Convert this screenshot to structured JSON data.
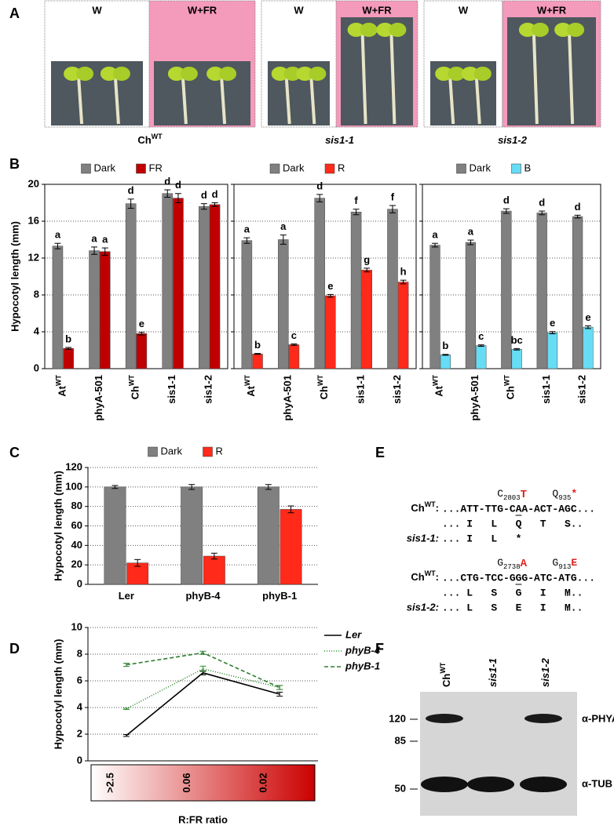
{
  "panel_labels": [
    "A",
    "B",
    "C",
    "D",
    "E",
    "F"
  ],
  "panel_a": {
    "groups": [
      {
        "conditions": [
          "W",
          "W+FR"
        ],
        "caption": "Ch",
        "caption_sup": "WT",
        "caption_color": "#6a5acd"
      },
      {
        "conditions": [
          "W",
          "W+FR"
        ],
        "caption": "sis1-1",
        "caption_color": "#000000"
      },
      {
        "conditions": [
          "W",
          "W+FR"
        ],
        "caption": "sis1-2",
        "caption_color": "#000000"
      }
    ]
  },
  "chart_data": [
    {
      "type": "bar",
      "y_label": "Hypocotyl length (mm)",
      "categories": [
        "At",
        "phyA-501",
        "Ch",
        "sis1-1",
        "sis1-2"
      ],
      "category_sups": [
        "WT",
        null,
        "WT",
        null,
        null
      ],
      "category_colors": [
        "#000000",
        "#000000",
        "#6a5acd",
        "#000000",
        "#000000"
      ],
      "series": [
        {
          "name": "Dark",
          "color": "#808080",
          "values": [
            13.3,
            12.8,
            17.9,
            19.0,
            17.6
          ],
          "errors": [
            0.3,
            0.4,
            0.5,
            0.4,
            0.3
          ],
          "letters": [
            "a",
            "a",
            "d",
            "d",
            "d"
          ]
        },
        {
          "name": "FR",
          "color": "#c00000",
          "values": [
            2.2,
            12.7,
            3.8,
            18.5,
            17.8
          ],
          "errors": [
            0.1,
            0.4,
            0.15,
            0.5,
            0.2
          ],
          "letters": [
            "b",
            "a",
            "e",
            "d",
            "d"
          ]
        }
      ],
      "ylim": [
        0,
        20
      ],
      "yticks": [
        0,
        4,
        8,
        12,
        16,
        20
      ],
      "grid": true,
      "frame": true,
      "rotate_labels": true
    },
    {
      "type": "bar",
      "categories": [
        "At",
        "phyA-501",
        "Ch",
        "sis1-1",
        "sis1-2"
      ],
      "category_sups": [
        "WT",
        null,
        "WT",
        null,
        null
      ],
      "category_colors": [
        "#000000",
        "#000000",
        "#6a5acd",
        "#000000",
        "#000000"
      ],
      "series": [
        {
          "name": "Dark",
          "color": "#808080",
          "values": [
            13.9,
            14.0,
            18.5,
            17.0,
            17.3
          ],
          "errors": [
            0.3,
            0.5,
            0.4,
            0.3,
            0.4
          ],
          "letters": [
            "a",
            "a",
            "d",
            "f",
            "f"
          ]
        },
        {
          "name": "R",
          "color": "#ff2a1a",
          "values": [
            1.6,
            2.6,
            7.9,
            10.7,
            9.4
          ],
          "errors": [
            0.05,
            0.08,
            0.15,
            0.2,
            0.2
          ],
          "letters": [
            "b",
            "c",
            "e",
            "g",
            "h"
          ]
        }
      ],
      "ylim": [
        0,
        20
      ],
      "yticks": [
        0,
        4,
        8,
        12,
        16,
        20
      ],
      "grid": true,
      "frame": true,
      "rotate_labels": true,
      "tick_labels": false
    },
    {
      "type": "bar",
      "categories": [
        "At",
        "phyA-501",
        "Ch",
        "sis1-1",
        "sis1-2"
      ],
      "category_sups": [
        "WT",
        null,
        "WT",
        null,
        null
      ],
      "category_colors": [
        "#000000",
        "#000000",
        "#6a5acd",
        "#000000",
        "#000000"
      ],
      "series": [
        {
          "name": "Dark",
          "color": "#808080",
          "values": [
            13.4,
            13.7,
            17.1,
            16.9,
            16.5
          ],
          "errors": [
            0.2,
            0.25,
            0.25,
            0.2,
            0.15
          ],
          "letters": [
            "a",
            "a",
            "d",
            "d",
            "d"
          ]
        },
        {
          "name": "B",
          "color": "#66ddf5",
          "values": [
            1.5,
            2.5,
            2.1,
            3.9,
            4.5
          ],
          "errors": [
            0.05,
            0.08,
            0.08,
            0.12,
            0.15
          ],
          "letters": [
            "b",
            "c",
            "bc",
            "e",
            "e"
          ]
        }
      ],
      "ylim": [
        0,
        20
      ],
      "yticks": [
        0,
        4,
        8,
        12,
        16,
        20
      ],
      "grid": true,
      "frame": true,
      "rotate_labels": true,
      "tick_labels": false
    },
    {
      "type": "bar",
      "y_label": "Hypocotyl length (mm)",
      "categories": [
        "Ler",
        "phyB-4",
        "phyB-1"
      ],
      "series": [
        {
          "name": "Dark",
          "color": "#808080",
          "values": [
            100,
            100,
            100
          ],
          "errors": [
            1.5,
            2.5,
            2.5
          ]
        },
        {
          "name": "R",
          "color": "#ff2a1a",
          "values": [
            22,
            29,
            77
          ],
          "errors": [
            3.5,
            3,
            3.5
          ]
        }
      ],
      "ylim": [
        0,
        120
      ],
      "yticks": [
        0,
        20,
        40,
        60,
        80,
        100,
        120
      ],
      "grid": true,
      "frame": false,
      "rotate_labels": false
    },
    {
      "type": "line",
      "y_label": "Hypocotyl length (mm)",
      "x_label": "R:FR ratio",
      "categories": [
        ">2.5",
        "0.06",
        "0.02"
      ],
      "gradient": [
        "#ffffff",
        "#cc0000"
      ],
      "series": [
        {
          "name": "Ler",
          "color": "#000000",
          "dash": "none",
          "values": [
            1.9,
            6.6,
            5.0
          ],
          "errors": [
            0.07,
            0.15,
            0.15
          ]
        },
        {
          "name": "phyB-4",
          "color": "#2e8b2e",
          "dash": "1,2",
          "values": [
            3.9,
            6.9,
            5.5
          ],
          "errors": [
            0.05,
            0.2,
            0.15
          ]
        },
        {
          "name": "phyB-1",
          "color": "#2e7d2e",
          "dash": "5,3",
          "values": [
            7.2,
            8.1,
            5.5
          ],
          "errors": [
            0.12,
            0.12,
            0.15
          ]
        }
      ],
      "ylim": [
        0,
        10
      ],
      "yticks": [
        0,
        2,
        4,
        6,
        8,
        10
      ],
      "grid": true
    }
  ],
  "panel_e": {
    "blocks": [
      {
        "mut_from": "C",
        "mut_pos": "2803",
        "mut_to": "T",
        "aa_from": "Q",
        "aa_pos": "935",
        "aa_to": "*",
        "wt_label": "Ch",
        "wt_sup": "WT",
        "colon": ":",
        "wt_seq": "...ATT-TTG-CAA-ACT-AGC...",
        "wt_aa": [
          "...",
          "I",
          "L",
          "Q",
          "T",
          "S",
          "..."
        ],
        "mut_label": "sis1-1:",
        "mut_aa": [
          "...",
          "I",
          "L",
          "*"
        ],
        "highlight": 3,
        "highlight_color": "#e02020"
      },
      {
        "mut_from": "G",
        "mut_pos": "2738",
        "mut_to": "A",
        "aa_from": "G",
        "aa_pos": "913",
        "aa_to": "E",
        "wt_label": "Ch",
        "wt_sup": "WT",
        "colon": ":",
        "wt_seq": "...CTG-TCC-GGG-ATC-ATG...",
        "wt_aa": [
          "...",
          "L",
          "S",
          "G",
          "I",
          "M",
          "..."
        ],
        "mut_label": "sis1-2:",
        "mut_aa": [
          "...",
          "L",
          "S",
          "E",
          "I",
          "M",
          "..."
        ],
        "highlight": 3,
        "highlight_color": "#e02020"
      }
    ]
  },
  "panel_f": {
    "lanes": [
      {
        "label": "Ch",
        "sup": "WT",
        "color": "#6a5acd"
      },
      {
        "label": "sis1-1",
        "color": "#000000"
      },
      {
        "label": "sis1-2",
        "color": "#000000"
      }
    ],
    "markers": [
      "120",
      "85",
      "50"
    ],
    "antibodies": [
      "α-PHYA",
      "α-TUB"
    ]
  }
}
